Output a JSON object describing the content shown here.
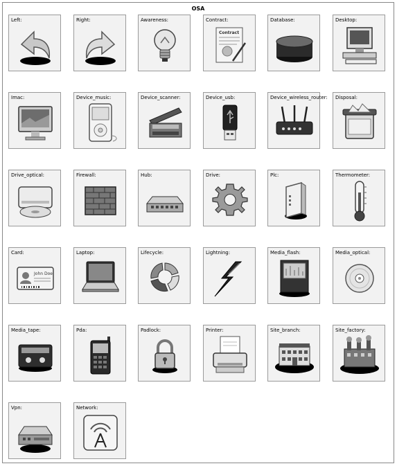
{
  "title": "OSA",
  "tiles": [
    {
      "label": "Left:",
      "icon": "arrow-left-icon"
    },
    {
      "label": "Right:",
      "icon": "arrow-right-icon"
    },
    {
      "label": "Awareness:",
      "icon": "lightbulb-icon"
    },
    {
      "label": "Contract:",
      "icon": "contract-icon",
      "caption": "Contract"
    },
    {
      "label": "Database:",
      "icon": "database-icon"
    },
    {
      "label": "Desktop:",
      "icon": "desktop-icon"
    },
    {
      "label": "Imac:",
      "icon": "imac-icon"
    },
    {
      "label": "Device_music:",
      "icon": "music-player-icon"
    },
    {
      "label": "Device_scanner:",
      "icon": "scanner-icon"
    },
    {
      "label": "Device_usb:",
      "icon": "usb-icon"
    },
    {
      "label": "Device_wireless_router:",
      "icon": "wireless-router-icon"
    },
    {
      "label": "Disposal:",
      "icon": "disposal-icon"
    },
    {
      "label": "Drive_optical:",
      "icon": "optical-drive-icon"
    },
    {
      "label": "Firewall:",
      "icon": "firewall-icon"
    },
    {
      "label": "Hub:",
      "icon": "hub-icon"
    },
    {
      "label": "Drive:",
      "icon": "gear-icon"
    },
    {
      "label": "Plc:",
      "icon": "plc-icon"
    },
    {
      "label": "Thermometer:",
      "icon": "thermometer-icon"
    },
    {
      "label": "Card:",
      "icon": "id-card-icon",
      "caption": "John Doe"
    },
    {
      "label": "Laptop:",
      "icon": "laptop-icon"
    },
    {
      "label": "Lifecycle:",
      "icon": "lifecycle-icon"
    },
    {
      "label": "Lightning:",
      "icon": "lightning-icon"
    },
    {
      "label": "Media_flash:",
      "icon": "flash-media-icon"
    },
    {
      "label": "Media_optical:",
      "icon": "optical-disc-icon"
    },
    {
      "label": "Media_tape:",
      "icon": "tape-icon"
    },
    {
      "label": "Pda:",
      "icon": "pda-icon"
    },
    {
      "label": "Padlock:",
      "icon": "padlock-icon"
    },
    {
      "label": "Printer:",
      "icon": "printer-icon"
    },
    {
      "label": "Site_branch:",
      "icon": "branch-building-icon"
    },
    {
      "label": "Site_factory:",
      "icon": "factory-icon"
    },
    {
      "label": "Vpn:",
      "icon": "vpn-icon"
    },
    {
      "label": "Network:",
      "icon": "network-tower-icon"
    }
  ]
}
